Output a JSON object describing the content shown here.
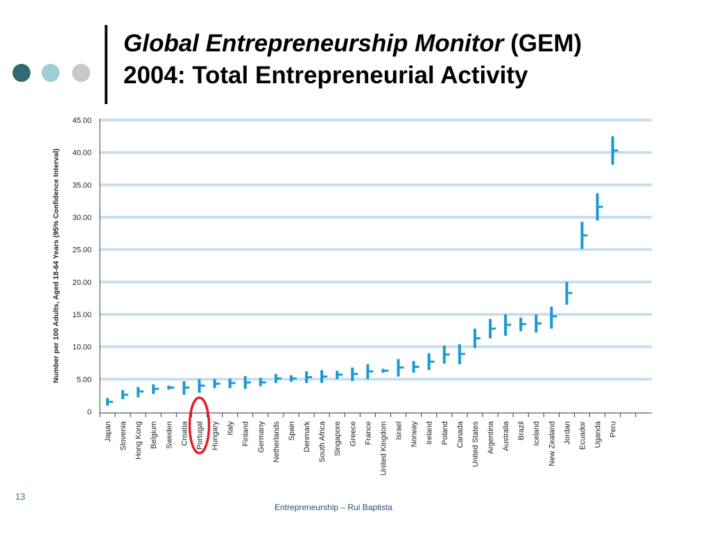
{
  "slide": {
    "title_italic": "Global Entrepreneurship Monitor",
    "title_rest": " (GEM)",
    "title_line2": "2004: Total Entrepreneurial Activity",
    "page_number": "13",
    "footer": "Entrepreneurship – Rui Baptista"
  },
  "colors": {
    "dots": [
      "#2f6b6f",
      "#9fcfd4",
      "#c8c8c8"
    ],
    "bars": "#1a9ad0",
    "grid": "#c6def0",
    "highlight": "#e41f26"
  },
  "chart_data": {
    "type": "error_bar",
    "ylabel": "Number per 100 Adults, Aged 18-64 Years (95% Confidence Interval)",
    "ylim": [
      0,
      45
    ],
    "yticks": [
      "0",
      "5.00",
      "10.00",
      "15.00",
      "20.00",
      "25.00",
      "30.00",
      "35.00",
      "40.00",
      "45.00"
    ],
    "grid": true,
    "highlighted": "Portugal",
    "series": [
      {
        "categories": [
          "Japan",
          "Slovenia",
          "Hong Kong",
          "Belgium",
          "Sweden",
          "Croatia",
          "Portugal",
          "Hungary",
          "Italy",
          "Finland",
          "Germany",
          "Netherlands",
          "Spain",
          "Denmark",
          "South Africa",
          "Singapore",
          "Greece",
          "France",
          "United Kingdom",
          "Israel",
          "Norway",
          "Ireland",
          "Poland",
          "Canada",
          "United States",
          "Argentina",
          "Australia",
          "Brazil",
          "Iceland",
          "New Zealand",
          "Jordan",
          "Ecuador",
          "Uganda",
          "Peru"
        ],
        "values": [
          1.5,
          2.6,
          3.1,
          3.5,
          3.7,
          3.7,
          4.0,
          4.3,
          4.4,
          4.5,
          4.5,
          5.1,
          5.1,
          5.3,
          5.4,
          5.7,
          5.8,
          6.2,
          6.3,
          6.8,
          6.9,
          7.7,
          8.8,
          8.9,
          11.3,
          12.8,
          13.4,
          13.5,
          13.6,
          14.7,
          18.3,
          27.2,
          31.6,
          40.3
        ],
        "low": [
          0.9,
          1.9,
          2.2,
          2.7,
          3.4,
          2.6,
          2.9,
          3.6,
          3.6,
          3.5,
          3.9,
          4.4,
          4.6,
          4.4,
          4.4,
          5.0,
          4.7,
          5.0,
          6.0,
          5.4,
          6.0,
          6.4,
          7.4,
          7.3,
          9.8,
          11.3,
          11.7,
          12.4,
          12.2,
          12.8,
          16.5,
          25.1,
          29.5,
          38.1
        ],
        "high": [
          2.1,
          3.3,
          3.8,
          4.2,
          4.0,
          4.7,
          5.0,
          5.0,
          5.1,
          5.5,
          5.2,
          5.8,
          5.6,
          6.2,
          6.4,
          6.3,
          6.8,
          7.3,
          6.6,
          8.1,
          7.8,
          9.0,
          10.2,
          10.4,
          12.8,
          14.3,
          15.0,
          14.5,
          15.0,
          16.2,
          20.0,
          29.3,
          33.7,
          42.5
        ]
      }
    ]
  }
}
